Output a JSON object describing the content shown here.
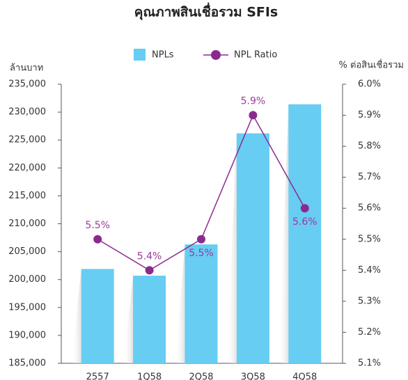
{
  "chart_data": {
    "type": "bar-line",
    "title": "คุณภาพสินเชื่อรวม SFIs",
    "y_label": "ล้านบาท",
    "y2_label": "% ต่อสินเชื่อรวม",
    "categories": [
      "2557",
      "1Q58",
      "2Q58",
      "3Q58",
      "4Q58"
    ],
    "series": [
      {
        "name": "NPLs",
        "type": "bar",
        "color": "#67cdf3",
        "values": [
          201900,
          200700,
          206300,
          226200,
          231400
        ]
      },
      {
        "name": "NPL Ratio",
        "type": "line",
        "axis": "y2",
        "color": "#8b2a8e",
        "values": [
          5.5,
          5.4,
          5.5,
          5.9,
          5.6
        ],
        "value_labels": [
          "5.5%",
          "5.4%",
          "5.5%",
          "5.9%",
          "5.6%"
        ]
      }
    ],
    "ylim": [
      185000,
      235000
    ],
    "yticks": [
      {
        "value": 185000,
        "label": "185,000"
      },
      {
        "value": 190000,
        "label": "190,000"
      },
      {
        "value": 195000,
        "label": "195,000"
      },
      {
        "value": 200000,
        "label": "200,000"
      },
      {
        "value": 205000,
        "label": "205,000"
      },
      {
        "value": 210000,
        "label": "210,000"
      },
      {
        "value": 215000,
        "label": "215,000"
      },
      {
        "value": 220000,
        "label": "220,000"
      },
      {
        "value": 225000,
        "label": "225,000"
      },
      {
        "value": 230000,
        "label": "230,000"
      },
      {
        "value": 235000,
        "label": "235,000"
      }
    ],
    "y2lim": [
      5.1,
      6.0
    ],
    "y2ticks": [
      {
        "value": 5.1,
        "label": "5.1%"
      },
      {
        "value": 5.2,
        "label": "5.2%"
      },
      {
        "value": 5.3,
        "label": "5.3%"
      },
      {
        "value": 5.4,
        "label": "5.4%"
      },
      {
        "value": 5.5,
        "label": "5.5%"
      },
      {
        "value": 5.6,
        "label": "5.6%"
      },
      {
        "value": 5.7,
        "label": "5.7%"
      },
      {
        "value": 5.8,
        "label": "5.8%"
      },
      {
        "value": 5.9,
        "label": "5.9%"
      },
      {
        "value": 6.0,
        "label": "6.0%"
      }
    ],
    "legend": "top"
  }
}
